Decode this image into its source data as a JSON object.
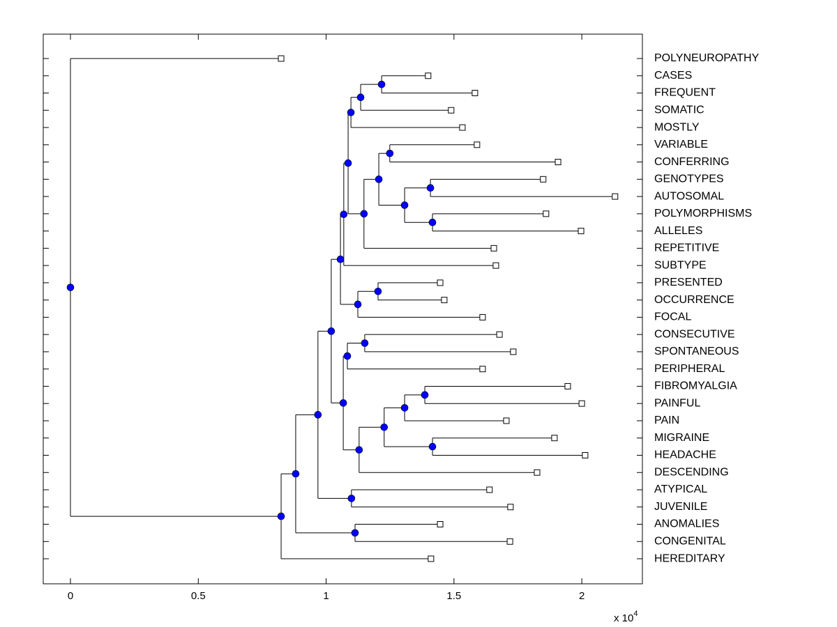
{
  "chart_data": {
    "type": "dendrogram",
    "x_label_multiplier": "x 10",
    "x_label_exponent": "4",
    "labels": [
      "POLYNEUROPATHY",
      "CASES",
      "FREQUENT",
      "SOMATIC",
      "MOSTLY",
      "VARIABLE",
      "CONFERRING",
      "GENOTYPES",
      "AUTOSOMAL",
      "POLYMORPHISMS",
      "ALLELES",
      "REPETITIVE",
      "SUBTYPE",
      "PRESENTED",
      "OCCURRENCE",
      "FOCAL",
      "CONSECUTIVE",
      "SPONTANEOUS",
      "PERIPHERAL",
      "FIBROMYALGIA",
      "PAINFUL",
      "PAIN",
      "MIGRAINE",
      "HEADACHE",
      "DESCENDING",
      "ATYPICAL",
      "JUVENILE",
      "ANOMALIES",
      "CONGENITAL",
      "HEREDITARY"
    ],
    "leaf_values": [
      0.824,
      1.399,
      1.582,
      1.489,
      1.533,
      1.59,
      1.907,
      1.849,
      2.13,
      1.86,
      1.997,
      1.656,
      1.664,
      1.446,
      1.462,
      1.612,
      1.678,
      1.732,
      1.612,
      1.945,
      2.0,
      1.705,
      1.893,
      2.013,
      1.825,
      1.639,
      1.721,
      1.446,
      1.719,
      1.41
    ],
    "links": [
      {
        "left": 1,
        "right": 2,
        "value": 1.217
      },
      {
        "left": 30,
        "right": 3,
        "value": 1.135
      },
      {
        "left": 31,
        "right": 4,
        "value": 1.097
      },
      {
        "left": 5,
        "right": 6,
        "value": 1.249
      },
      {
        "left": 7,
        "right": 8,
        "value": 1.408
      },
      {
        "left": 9,
        "right": 10,
        "value": 1.416
      },
      {
        "left": 34,
        "right": 35,
        "value": 1.307
      },
      {
        "left": 33,
        "right": 36,
        "value": 1.206
      },
      {
        "left": 37,
        "right": 11,
        "value": 1.148
      },
      {
        "left": 32,
        "right": 38,
        "value": 1.086
      },
      {
        "left": 39,
        "right": 12,
        "value": 1.069
      },
      {
        "left": 13,
        "right": 14,
        "value": 1.203
      },
      {
        "left": 41,
        "right": 15,
        "value": 1.124
      },
      {
        "left": 40,
        "right": 42,
        "value": 1.056
      },
      {
        "left": 16,
        "right": 17,
        "value": 1.151
      },
      {
        "left": 44,
        "right": 18,
        "value": 1.083
      },
      {
        "left": 19,
        "right": 20,
        "value": 1.386
      },
      {
        "left": 46,
        "right": 21,
        "value": 1.307
      },
      {
        "left": 22,
        "right": 23,
        "value": 1.416
      },
      {
        "left": 47,
        "right": 48,
        "value": 1.227
      },
      {
        "left": 49,
        "right": 24,
        "value": 1.129
      },
      {
        "left": 45,
        "right": 50,
        "value": 1.067
      },
      {
        "left": 43,
        "right": 51,
        "value": 1.02
      },
      {
        "left": 25,
        "right": 26,
        "value": 1.099
      },
      {
        "left": 52,
        "right": 53,
        "value": 0.968
      },
      {
        "left": 27,
        "right": 28,
        "value": 1.113
      },
      {
        "left": 54,
        "right": 55,
        "value": 0.881
      },
      {
        "left": 56,
        "right": 29,
        "value": 0.824
      },
      {
        "left": 0,
        "right": 57,
        "value": 0
      }
    ],
    "node_color": "#0000ff",
    "xlim": [
      -0.1064,
      2.237
    ],
    "xticks": [
      0,
      0.5,
      1,
      1.5,
      2
    ]
  }
}
